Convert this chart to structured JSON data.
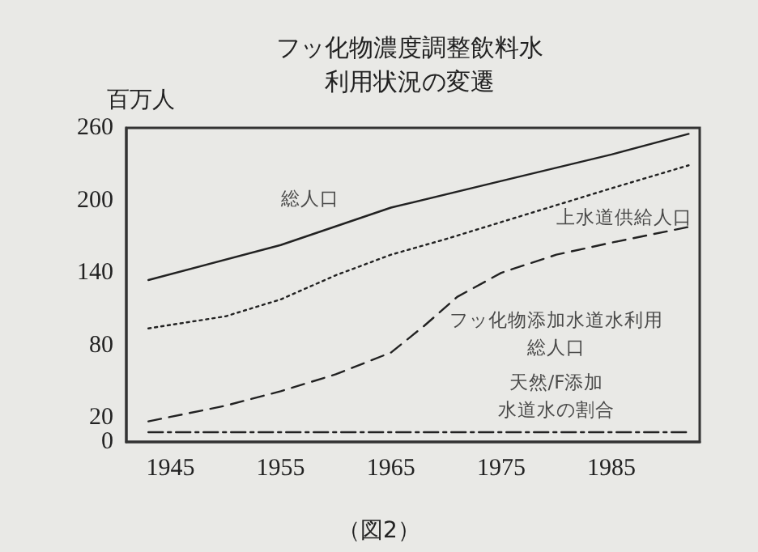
{
  "chart_data": {
    "type": "line",
    "title": "フッ化物濃度調整飲料水利用状況の変遷",
    "ylabel": "百万人",
    "xlim": [
      1941,
      1993
    ],
    "xticks": [
      1945,
      1955,
      1965,
      1975,
      1985
    ],
    "ylim": [
      0,
      260
    ],
    "yticks": [
      0,
      20,
      80,
      140,
      200,
      260
    ],
    "grid": false,
    "marker": "none",
    "series": [
      {
        "name": "総人口",
        "color": "#222222",
        "line_style": "solid",
        "x": [
          1943,
          1955,
          1965,
          1975,
          1985,
          1992
        ],
        "values": [
          134,
          163,
          194,
          216,
          238,
          255
        ]
      },
      {
        "name": "上水道供給人口",
        "color": "#222222",
        "line_style": "dotted",
        "x": [
          1943,
          1950,
          1955,
          1960,
          1965,
          1970,
          1975,
          1980,
          1985,
          1992
        ],
        "values": [
          94,
          104,
          118,
          138,
          155,
          168,
          182,
          196,
          210,
          229
        ]
      },
      {
        "name": "フッ化物添加水道水利用総人口",
        "color": "#222222",
        "line_style": "dashed",
        "x": [
          1943,
          1950,
          1955,
          1960,
          1965,
          1968,
          1971,
          1975,
          1980,
          1985,
          1992
        ],
        "values": [
          17,
          30,
          42,
          56,
          74,
          96,
          120,
          140,
          155,
          165,
          178
        ]
      },
      {
        "name": "天然/F添加水道水の割合",
        "color": "#222222",
        "line_style": "dashdot",
        "x": [
          1943,
          1992
        ],
        "values": [
          8,
          8
        ]
      }
    ],
    "annotations": [
      "（図2）"
    ]
  }
}
